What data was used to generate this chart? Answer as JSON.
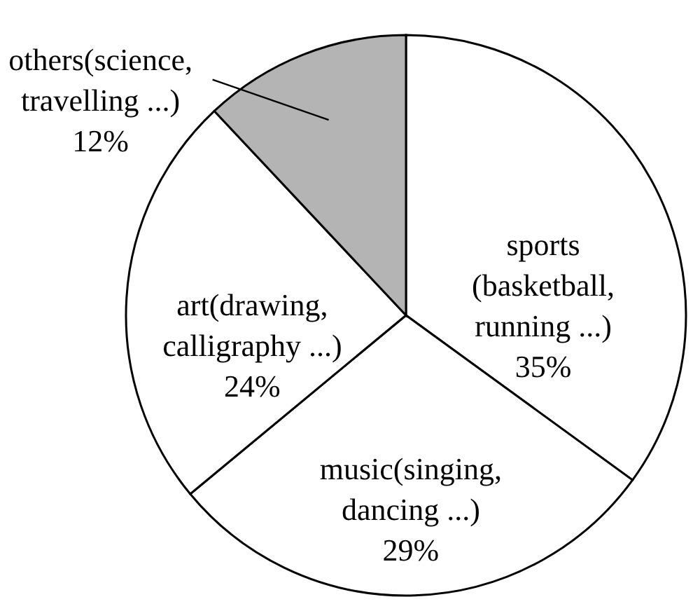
{
  "chart_data": {
    "type": "pie",
    "categories": [
      "sports (basketball, running ...)",
      "music(singing, dancing ...)",
      "art(drawing, calligraphy ...)",
      "others(science, travelling ...)"
    ],
    "values": [
      35,
      29,
      24,
      12
    ],
    "value_labels": [
      "35%",
      "29%",
      "24%",
      "12%"
    ],
    "colors": [
      "#ffffff",
      "#ffffff",
      "#ffffff",
      "#b4b4b4"
    ]
  }
}
